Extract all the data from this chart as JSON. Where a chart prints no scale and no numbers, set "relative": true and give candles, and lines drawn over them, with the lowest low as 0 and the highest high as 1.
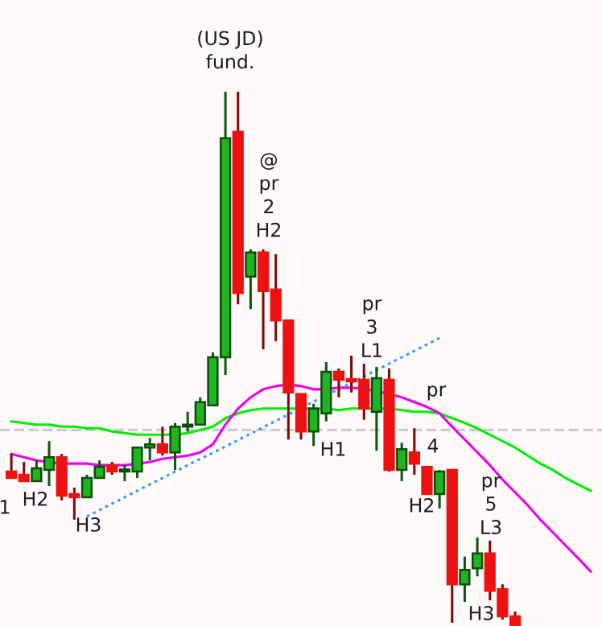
{
  "chart_data": {
    "type": "candlestick",
    "relative": true,
    "grid": false,
    "categories": [
      null,
      null,
      null,
      null,
      null,
      null,
      null,
      null,
      null,
      null,
      null,
      null,
      null,
      null,
      null,
      null,
      null,
      null,
      null,
      null,
      null,
      null,
      null,
      null,
      null,
      null,
      null,
      null,
      null,
      null,
      null,
      null,
      null,
      null,
      null,
      null,
      null,
      null,
      null,
      null,
      null,
      null,
      null,
      null,
      null,
      null,
      null
    ],
    "ohlc": [
      [
        0.289,
        0.322,
        0.277,
        0.277
      ],
      [
        0.283,
        0.307,
        0.271,
        0.271
      ],
      [
        0.271,
        0.31,
        0.271,
        0.295
      ],
      [
        0.292,
        0.346,
        0.262,
        0.316
      ],
      [
        0.316,
        0.322,
        0.235,
        0.244
      ],
      [
        0.247,
        0.259,
        0.199,
        0.241
      ],
      [
        0.241,
        0.283,
        0.241,
        0.277
      ],
      [
        0.277,
        0.31,
        0.277,
        0.298
      ],
      [
        0.301,
        0.307,
        0.283,
        0.289
      ],
      [
        0.289,
        0.301,
        0.271,
        0.289
      ],
      [
        0.289,
        0.334,
        0.277,
        0.334
      ],
      [
        0.334,
        0.352,
        0.31,
        0.34
      ],
      [
        0.34,
        0.373,
        0.319,
        0.325
      ],
      [
        0.325,
        0.38,
        0.292,
        0.373
      ],
      [
        0.373,
        0.401,
        0.364,
        0.373
      ],
      [
        0.377,
        0.428,
        0.377,
        0.419
      ],
      [
        0.413,
        0.512,
        0.413,
        0.503
      ],
      [
        0.503,
        1.0,
        0.47,
        0.913
      ],
      [
        0.925,
        1.0,
        0.602,
        0.623
      ],
      [
        0.654,
        0.705,
        0.593,
        0.699
      ],
      [
        0.699,
        0.705,
        0.518,
        0.627
      ],
      [
        0.63,
        0.696,
        0.533,
        0.572
      ],
      [
        0.572,
        0.572,
        0.349,
        0.437
      ],
      [
        0.434,
        0.434,
        0.349,
        0.364
      ],
      [
        0.364,
        0.416,
        0.337,
        0.407
      ],
      [
        0.398,
        0.494,
        0.383,
        0.476
      ],
      [
        0.476,
        0.482,
        0.428,
        0.461
      ],
      [
        0.461,
        0.506,
        0.437,
        0.458
      ],
      [
        0.461,
        0.491,
        0.386,
        0.407
      ],
      [
        0.401,
        0.485,
        0.328,
        0.464
      ],
      [
        0.461,
        0.482,
        0.289,
        0.292
      ],
      [
        0.292,
        0.343,
        0.271,
        0.331
      ],
      [
        0.325,
        0.37,
        0.283,
        0.304
      ],
      [
        0.298,
        0.298,
        0.247,
        0.247
      ],
      [
        0.247,
        0.292,
        0.22,
        0.289
      ],
      [
        0.292,
        0.292,
        0.006,
        0.078
      ],
      [
        0.078,
        0.13,
        0.045,
        0.105
      ],
      [
        0.108,
        0.166,
        0.093,
        0.136
      ],
      [
        0.136,
        0.16,
        0.048,
        0.066
      ],
      [
        0.069,
        0.078,
        0.012,
        0.018
      ],
      [
        0.018,
        0.027,
        0.0,
        0.0
      ],
      null,
      null,
      null,
      null,
      null,
      null
    ],
    "colors": [
      "#ee1111",
      "#ee1111",
      "#22b322",
      "#22b322",
      "#ee1111",
      "#ee1111",
      "#22b322",
      "#22b322",
      "#ee1111",
      "#ee1111",
      "#22b322",
      "#22b322",
      "#ee1111",
      "#22b322",
      "#ee1111",
      "#22b322",
      "#22b322",
      "#22b322",
      "#ee1111",
      "#22b322",
      "#ee1111",
      "#ee1111",
      "#ee1111",
      "#ee1111",
      "#22b322",
      "#22b322",
      "#ee1111",
      "#ee1111",
      "#ee1111",
      "#22b322",
      "#ee1111",
      "#22b322",
      "#ee1111",
      "#ee1111",
      "#22b322",
      "#ee1111",
      "#22b322",
      "#22b322",
      "#ee1111",
      "#ee1111",
      "#ee1111",
      null,
      null,
      null,
      null,
      null,
      null
    ],
    "series": [
      {
        "type": "line",
        "color": "#00ee00",
        "line_style": "solid",
        "values": [
          0.383,
          0.38,
          0.377,
          0.377,
          0.373,
          0.373,
          0.37,
          0.37,
          0.364,
          0.361,
          0.358,
          0.358,
          0.358,
          0.358,
          0.361,
          0.367,
          0.373,
          0.389,
          0.398,
          0.404,
          0.407,
          0.407,
          0.407,
          0.407,
          0.407,
          0.407,
          0.404,
          0.407,
          0.407,
          0.407,
          0.407,
          0.404,
          0.401,
          0.401,
          0.398,
          0.389,
          0.38,
          0.37,
          0.358,
          0.346,
          0.334,
          0.319,
          0.304,
          0.292,
          0.277,
          0.265,
          0.253
        ]
      },
      {
        "type": "line",
        "color": "#ee00ee",
        "line_style": "solid",
        "values": [
          0.322,
          0.316,
          0.31,
          0.307,
          0.304,
          0.304,
          0.304,
          0.301,
          0.301,
          0.301,
          0.304,
          0.307,
          0.313,
          0.316,
          0.319,
          0.325,
          0.34,
          0.377,
          0.407,
          0.428,
          0.443,
          0.449,
          0.452,
          0.449,
          0.443,
          0.443,
          0.446,
          0.446,
          0.443,
          0.44,
          0.434,
          0.428,
          0.419,
          0.41,
          0.398,
          0.373,
          0.349,
          0.325,
          0.301,
          0.274,
          0.25,
          0.226,
          0.199,
          0.175,
          0.151,
          0.127,
          0.102
        ]
      },
      {
        "type": "line",
        "color": "#3399ff",
        "line_style": "dotted",
        "values": [
          null,
          null,
          null,
          null,
          null,
          null,
          0.205,
          0.217,
          0.229,
          0.241,
          0.253,
          0.265,
          0.277,
          0.289,
          0.301,
          0.313,
          0.324,
          0.336,
          0.348,
          0.36,
          0.372,
          0.384,
          0.396,
          0.408,
          0.42,
          0.432,
          0.443,
          0.455,
          0.467,
          0.479,
          0.491,
          0.503,
          0.515,
          0.527,
          0.539,
          null,
          null,
          null,
          null,
          null,
          null,
          null,
          null,
          null,
          null,
          null,
          null
        ]
      }
    ],
    "ref_lines": [
      {
        "axis": "y",
        "value": 0.367,
        "color": "#cccccc",
        "line_style": "dashed"
      }
    ],
    "annotations": [
      "(US JD)\nfund.",
      "@\npr\n2\nH2",
      "pr\n3\nL1",
      "H1",
      "pr",
      "4",
      "H2",
      "pr\n5\nL3",
      "H3",
      "H2",
      "H3",
      "1"
    ]
  }
}
